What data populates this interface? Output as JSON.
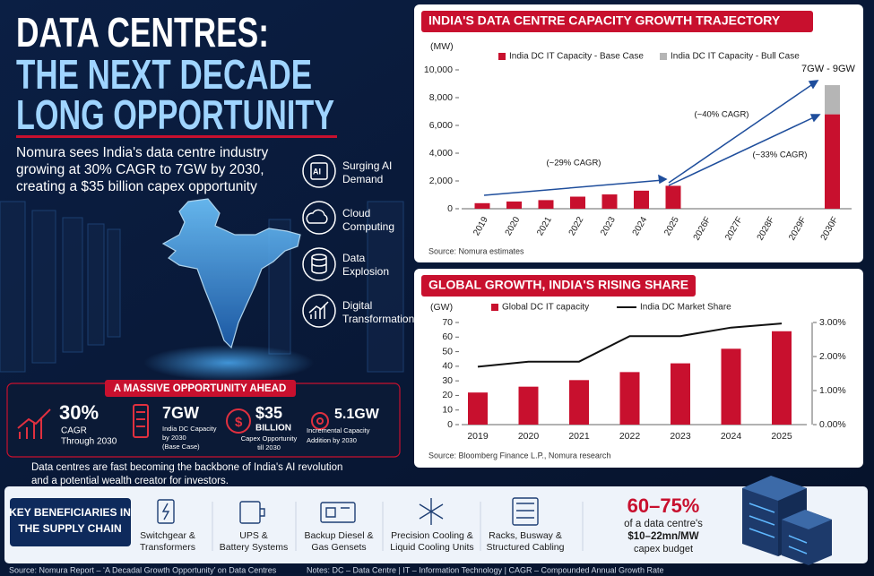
{
  "header": {
    "title_lines": [
      "DATA CENTRES:",
      "THE NEXT DECADE",
      "LONG OPPORTUNITY"
    ],
    "intro_lines": [
      "Nomura sees India's data centre industry",
      "growing at 30% CAGR to 7GW by 2030,",
      "creating a $35 billion capex opportunity"
    ]
  },
  "drivers": [
    {
      "label_lines": [
        "Surging AI",
        "Demand"
      ]
    },
    {
      "label_lines": [
        "Cloud",
        "Computing"
      ]
    },
    {
      "label_lines": [
        "Data",
        "Explosion"
      ]
    },
    {
      "label_lines": [
        "Digital",
        "Transformation"
      ]
    }
  ],
  "opportunity": {
    "title": "A MASSIVE OPPORTUNITY AHEAD",
    "stats": [
      {
        "value": "30%",
        "lines": [
          "CAGR",
          "Through 2030"
        ]
      },
      {
        "value": "7GW",
        "lines": [
          "India DC Capacity",
          "by 2030",
          "(Base Case)"
        ]
      },
      {
        "value": "$35",
        "lines": [
          "BILLION",
          "Capex Opportunity",
          "till 2030"
        ]
      },
      {
        "value": "5.1GW",
        "lines": [
          "Incremental Capacity",
          "Addition by 2030"
        ]
      }
    ]
  },
  "closing_lines": [
    "Data centres are fast becoming the backbone of India's AI revolution",
    "and a potential wealth creator for investors."
  ],
  "beneficiaries": {
    "title_lines": [
      "KEY BENEFICIARIES IN",
      "THE SUPPLY CHAIN"
    ],
    "items": [
      {
        "lines": [
          "Switchgear &",
          "Transformers"
        ]
      },
      {
        "lines": [
          "UPS &",
          "Battery Systems"
        ]
      },
      {
        "lines": [
          "Backup Diesel &",
          "Gas Gensets"
        ]
      },
      {
        "lines": [
          "Precision Cooling &",
          "Liquid Cooling Units"
        ]
      },
      {
        "lines": [
          "Racks, Busway &",
          "Structured Cabling"
        ]
      }
    ],
    "capex": {
      "value": "60–75%",
      "lines": [
        "of a data centre's",
        "$10–22mn/MW",
        "capex budget"
      ]
    }
  },
  "footer": {
    "source": "Source: Nomura Report – ‘A Decadal Growth Opportunity’ on Data Centres",
    "notes": "Notes: DC – Data Centre | IT – Information Technology | CAGR – Compounded Annual Growth Rate"
  },
  "chart_data": [
    {
      "type": "bar",
      "stacked": true,
      "title": "INDIA'S DATA CENTRE CAPACITY GROWTH TRAJECTORY",
      "y_label": "(MW)",
      "source": "Source: Nomura estimates",
      "categories": [
        "2019",
        "2020",
        "2021",
        "2022",
        "2023",
        "2024",
        "2025",
        "2026F",
        "2027F",
        "2028F",
        "2029F",
        "2030F"
      ],
      "series": [
        {
          "name": "India DC IT Capacity - Base Case",
          "color": "#c8102e",
          "values": [
            400,
            520,
            620,
            870,
            1030,
            1300,
            1650,
            null,
            null,
            null,
            null,
            6800
          ]
        },
        {
          "name": "India DC IT Capacity - Bull Case",
          "color": "#b5b5b5",
          "values": [
            null,
            null,
            null,
            null,
            null,
            null,
            null,
            null,
            null,
            null,
            null,
            2100
          ]
        }
      ],
      "annotations": [
        "(~29% CAGR)",
        "(~40% CAGR)",
        "(~33% CAGR)",
        "7GW - 9GW"
      ],
      "ylim": [
        0,
        10000
      ],
      "yticks": [
        0,
        {
          "value": 2000,
          "label": "2,000"
        },
        {
          "value": 4000,
          "label": "4,000"
        },
        {
          "value": 6000,
          "label": "6,000"
        },
        {
          "value": 8000,
          "label": "8,000"
        },
        {
          "value": 10000,
          "label": "10,000"
        }
      ],
      "grid": false
    },
    {
      "type": "combo",
      "title": "GLOBAL GROWTH, INDIA'S RISING SHARE",
      "y_label": "(GW)",
      "source": "Source: Bloomberg Finance L.P., Nomura research",
      "categories": [
        "2019",
        "2020",
        "2021",
        "2022",
        "2023",
        "2024",
        "2025"
      ],
      "series": [
        {
          "name": "Global DC IT capacity",
          "color": "#c8102e",
          "kind": "bar",
          "values": [
            22,
            26,
            30.5,
            36,
            42,
            52,
            64
          ]
        },
        {
          "name": "India DC Market Share",
          "color": "#111111",
          "kind": "line",
          "axis": "y2",
          "values": [
            1.7,
            1.85,
            1.85,
            2.6,
            2.6,
            2.85,
            2.97
          ]
        }
      ],
      "ylim": [
        0,
        70
      ],
      "yticks": [
        0,
        10,
        20,
        30,
        40,
        50,
        60,
        70
      ],
      "y2lim": [
        0,
        3
      ],
      "y2ticks": [
        {
          "value": 0,
          "label": "0.00%"
        },
        {
          "value": 1,
          "label": "1.00%"
        },
        {
          "value": 2,
          "label": "2.00%"
        },
        {
          "value": 3,
          "label": "3.00%"
        }
      ],
      "grid": false
    }
  ]
}
